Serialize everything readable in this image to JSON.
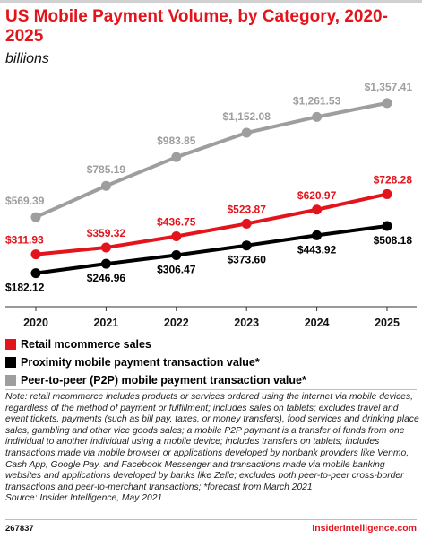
{
  "header": {
    "title": "US Mobile Payment Volume, by Category, 2020-2025",
    "subtitle": "billions"
  },
  "colors": {
    "accent": "#e3141b",
    "retail": "#e3141b",
    "proximity": "#000000",
    "p2p": "#9e9e9e"
  },
  "chart_data": {
    "type": "line",
    "title": "US Mobile Payment Volume, by Category, 2020-2025",
    "subtitle": "billions",
    "x": [
      "2020",
      "2021",
      "2022",
      "2023",
      "2024",
      "2025"
    ],
    "ylim": [
      0,
      1400
    ],
    "grid": false,
    "legend_position": "bottom",
    "series": [
      {
        "name": "Retail mcommerce sales",
        "color": "#e3141b",
        "values": [
          311.93,
          359.32,
          436.75,
          523.87,
          620.97,
          728.28
        ],
        "labels": [
          "$311.93",
          "$359.32",
          "$436.75",
          "$523.87",
          "$620.97",
          "$728.28"
        ]
      },
      {
        "name": "Proximity mobile payment transaction value*",
        "color": "#000000",
        "values": [
          182.12,
          246.96,
          306.47,
          373.6,
          443.92,
          508.18
        ],
        "labels": [
          "$182.12",
          "$246.96",
          "$306.47",
          "$373.60",
          "$443.92",
          "$508.18"
        ]
      },
      {
        "name": "Peer-to-peer (P2P) mobile payment transaction value*",
        "color": "#9e9e9e",
        "values": [
          569.39,
          785.19,
          983.85,
          1152.08,
          1261.53,
          1357.41
        ],
        "labels": [
          "$569.39",
          "$785.19",
          "$983.85",
          "$1,152.08",
          "$1,261.53",
          "$1,357.41"
        ]
      }
    ]
  },
  "note": "Note: retail mcommerce includes products or services ordered using the internet via mobile devices, regardless of the method of payment or fulfillment; includes sales on tablets; excludes travel and event tickets, payments (such as bill pay, taxes, or money transfers), food services and drinking place sales, gambling and other vice goods sales; a mobile P2P payment is a transfer of funds from one individual to another individual using a mobile device; includes transfers on tablets; includes transactions made via mobile browser or applications developed by nonbank providers like Venmo, Cash App, Google Pay, and Facebook Messenger and transactions made via mobile banking websites and applications developed by banks like Zelle; excludes both peer-to-peer cross-border transactions and peer-to-merchant transactions; *forecast from March 2021",
  "source": "Source: Insider Intelligence, May 2021",
  "footer": {
    "id": "267837",
    "brand": "InsiderIntelligence.com"
  }
}
